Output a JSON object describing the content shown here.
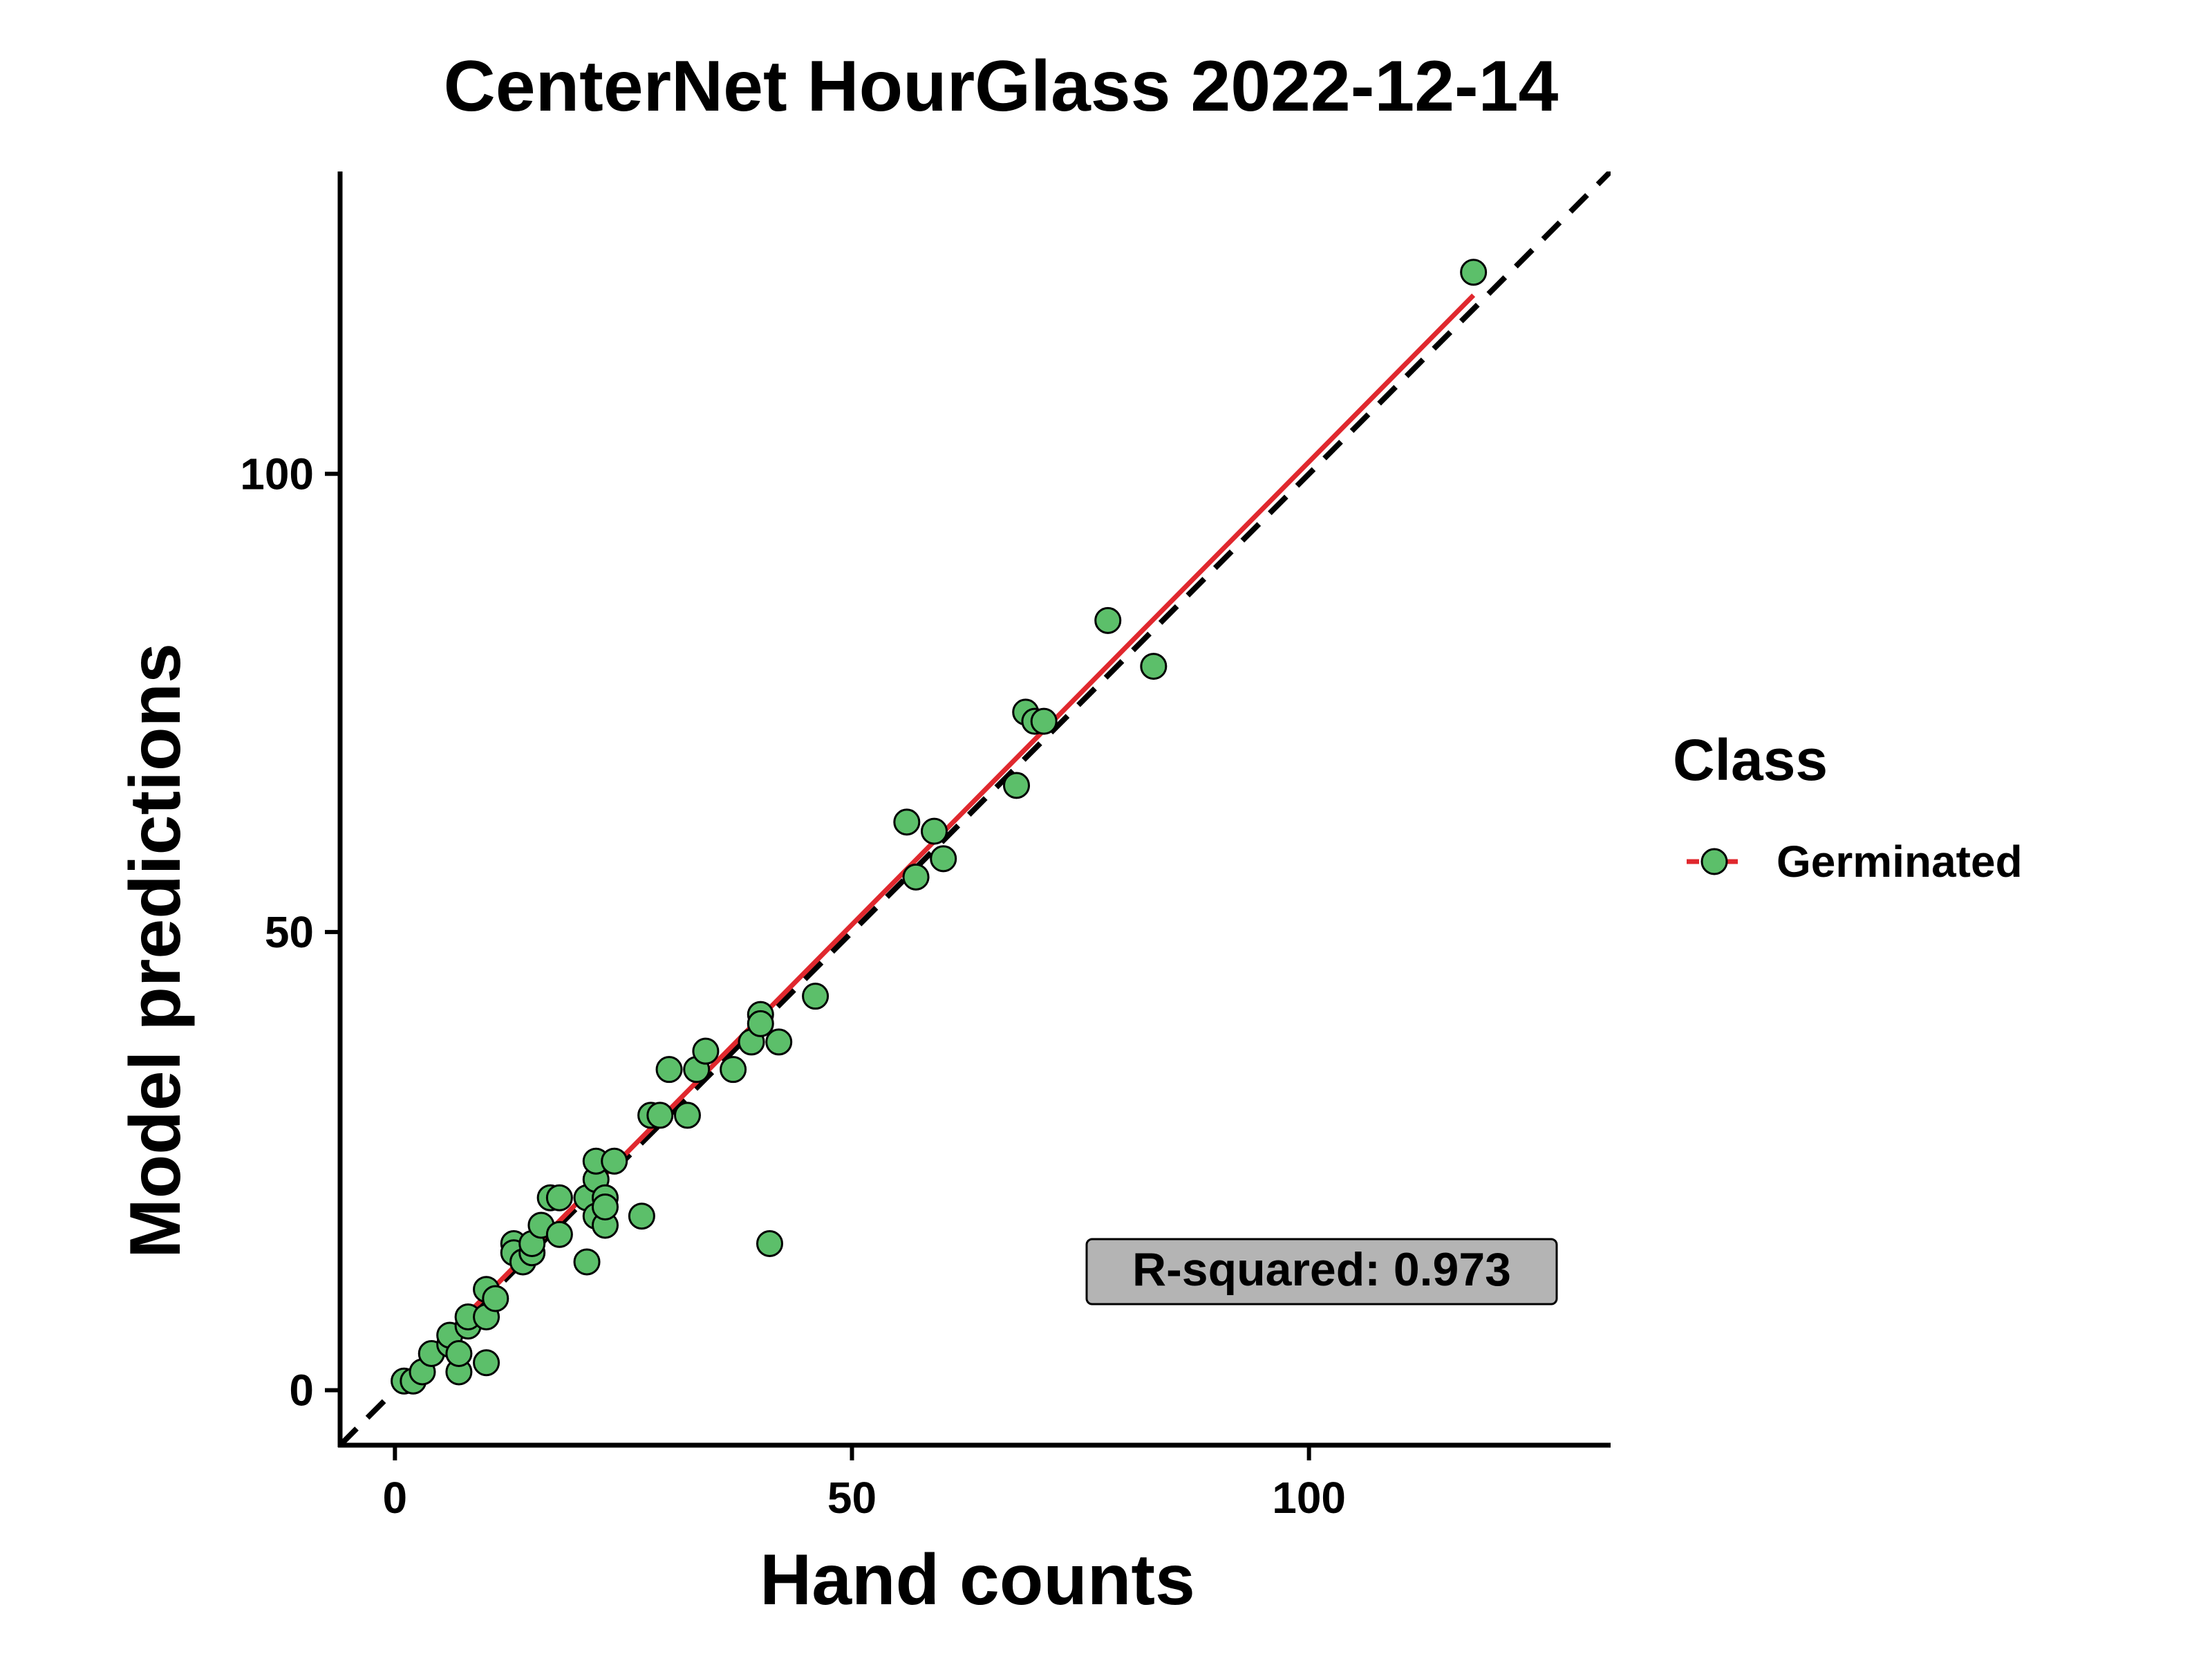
{
  "chart_data": {
    "type": "scatter",
    "title": "CenterNet HourGlass 2022-12-14",
    "xlabel": "Hand counts",
    "ylabel": "Model predictions",
    "xlim": [
      -6,
      133
    ],
    "ylim": [
      -6,
      133
    ],
    "x_ticks": [
      0,
      50,
      100
    ],
    "x_tick_labels": [
      "0",
      "50",
      "100"
    ],
    "y_ticks": [
      0,
      50,
      100
    ],
    "y_tick_labels": [
      "0",
      "50",
      "100"
    ],
    "grid": false,
    "legend": {
      "title": "Class",
      "placement": "right",
      "entries": [
        {
          "label": "Germinated"
        }
      ]
    },
    "annotation": "R-squared: 0.973",
    "identity_line": {
      "style": "dashed",
      "color": "#000000",
      "from": [
        -6,
        -6
      ],
      "to": [
        133,
        133
      ]
    },
    "fit_line": {
      "color": "#e0282e",
      "from": [
        1,
        1.3
      ],
      "to": [
        118,
        119.5
      ]
    },
    "series": [
      {
        "name": "Germinated",
        "color": "#5cbf6a",
        "x": [
          1,
          2,
          3,
          4,
          6,
          6,
          7,
          7,
          8,
          8,
          10,
          10,
          10,
          11,
          13,
          13,
          14,
          15,
          15,
          16,
          17,
          18,
          18,
          21,
          21,
          22,
          22,
          22,
          23,
          23,
          23,
          24,
          27,
          28,
          29,
          30,
          32,
          33,
          34,
          37,
          39,
          40,
          40,
          41,
          42,
          46,
          56,
          57,
          59,
          60,
          68,
          69,
          70,
          71,
          78,
          83,
          118
        ],
        "y": [
          1,
          1,
          2,
          4,
          5,
          6,
          2,
          4,
          7,
          8,
          3,
          8,
          11,
          10,
          16,
          15,
          14,
          15,
          16,
          18,
          21,
          17,
          21,
          14,
          21,
          19,
          23,
          25,
          18,
          21,
          20,
          25,
          19,
          30,
          30,
          35,
          30,
          35,
          37,
          35,
          38,
          41,
          40,
          16,
          38,
          43,
          62,
          56,
          61,
          58,
          66,
          74,
          73,
          73,
          84,
          79,
          122
        ]
      }
    ]
  }
}
